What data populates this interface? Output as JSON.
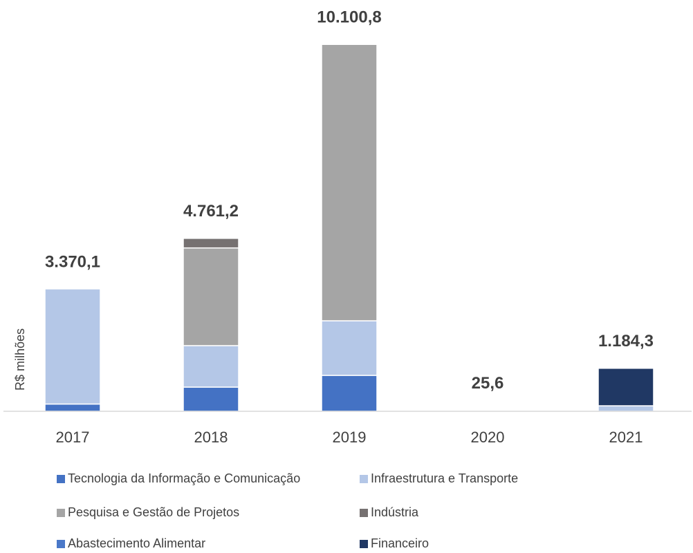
{
  "chart_data": {
    "type": "stacked_bar",
    "y_label": "R$ milhões",
    "categories": [
      "2017",
      "2018",
      "2019",
      "2020",
      "2021"
    ],
    "series": [
      {
        "name": "Tecnologia da Informação e Comunicação",
        "color": "#4472c4",
        "values": [
          200,
          666,
          989,
          0,
          0
        ]
      },
      {
        "name": "Infraestrutura e Transporte",
        "color": "#b4c7e7",
        "values": [
          3170.1,
          1142,
          1503,
          0,
          152
        ]
      },
      {
        "name": "Pesquisa e Gestão de Projetos",
        "color": "#a5a5a5",
        "values": [
          0,
          2690,
          7608.8,
          0,
          0
        ]
      },
      {
        "name": "Indústria",
        "color": "#767171",
        "values": [
          0,
          263.2,
          0,
          0,
          0
        ]
      },
      {
        "name": "Abastecimento Alimentar",
        "color": "#4a78c8",
        "values": [
          0,
          0,
          0,
          25.6,
          0
        ]
      },
      {
        "name": "Financeiro",
        "color": "#203864",
        "values": [
          0,
          0,
          0,
          0,
          1032.3
        ]
      }
    ],
    "totals": [
      3370.1,
      4761.2,
      10100.8,
      25.6,
      1184.3
    ],
    "total_labels": [
      "3.370,1",
      "4.761,2",
      "10.100,8",
      "25,6",
      "1.184,3"
    ],
    "ylim": [
      0,
      11000
    ]
  }
}
